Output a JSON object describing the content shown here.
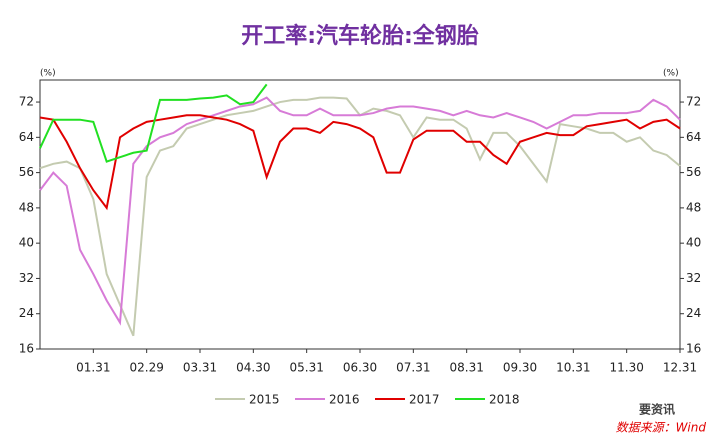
{
  "chart_data": {
    "type": "line",
    "title": "开工率:汽车轮胎:全钢胎",
    "ylabel": "(%)",
    "y2label": "(%)",
    "categories": [
      null,
      null,
      null,
      null,
      "01.31",
      null,
      null,
      null,
      "02.29",
      null,
      null,
      null,
      "03.31",
      null,
      null,
      null,
      "04.30",
      null,
      null,
      null,
      "05.31",
      null,
      null,
      null,
      "06.30",
      null,
      null,
      null,
      "07.31",
      null,
      null,
      null,
      "08.31",
      null,
      null,
      null,
      "09.30",
      null,
      null,
      null,
      "10.31",
      null,
      null,
      null,
      "11.30",
      null,
      null,
      null,
      "12.31"
    ],
    "ylim": [
      16,
      77
    ],
    "yticks": [
      16,
      24,
      32,
      40,
      48,
      56,
      64,
      72
    ],
    "y2lim": [
      16,
      77
    ],
    "y2ticks": [
      16,
      24,
      32,
      40,
      48,
      56,
      64,
      72
    ],
    "series": [
      {
        "name": "2015",
        "color": "#c4cbb0",
        "values": [
          57,
          58,
          58.5,
          57,
          50,
          33,
          26,
          19,
          55,
          61,
          62,
          66,
          67,
          68,
          69,
          69.5,
          70,
          71,
          72,
          72.5,
          72.5,
          73,
          73,
          72.8,
          69,
          70.5,
          70,
          69,
          64,
          68.5,
          68,
          68,
          66,
          59,
          65,
          65,
          62,
          58,
          54,
          67,
          66.5,
          66,
          65,
          65,
          63,
          64,
          61,
          60,
          57.5
        ]
      },
      {
        "name": "2016",
        "color": "#d77bd7",
        "values": [
          52,
          56,
          53,
          38.5,
          33,
          27,
          22,
          58,
          62,
          64,
          65,
          67,
          68,
          69,
          70,
          71,
          71.5,
          73,
          70,
          69,
          69,
          70.5,
          69,
          69,
          69,
          69.5,
          70.5,
          71,
          71,
          70.5,
          70,
          69,
          70,
          69,
          68.5,
          69.5,
          68.5,
          67.5,
          66,
          67.5,
          69,
          69,
          69.5,
          69.5,
          69.5,
          70,
          72.5,
          71,
          68
        ]
      },
      {
        "name": "2017",
        "color": "#e00000",
        "values": [
          68.5,
          68,
          63,
          57,
          52,
          48,
          64,
          66,
          67.5,
          68,
          68.5,
          69,
          69,
          68.5,
          68,
          67,
          65.5,
          55,
          63,
          66,
          66,
          65,
          67.5,
          67,
          66,
          64,
          56,
          56,
          63.5,
          65.5,
          65.5,
          65.5,
          63,
          63,
          60,
          58,
          63,
          64,
          65,
          64.5,
          64.5,
          66.5,
          67,
          67.5,
          68,
          66,
          67.5,
          68,
          66
        ]
      },
      {
        "name": "2018",
        "color": "#22e022",
        "values": [
          61.5,
          68,
          68,
          68,
          67.5,
          58.5,
          59.5,
          60.5,
          61,
          72.5,
          72.5,
          72.5,
          72.8,
          73,
          73.5,
          71.5,
          72,
          76,
          null,
          null,
          null,
          null,
          null,
          null,
          null,
          null,
          null,
          null,
          null,
          null,
          null,
          null,
          null,
          null,
          null,
          null,
          null,
          null,
          null,
          null,
          null,
          null,
          null,
          null,
          null,
          null,
          null,
          null,
          null
        ]
      }
    ],
    "watermark": "要资讯",
    "source": "数据来源：Wind"
  }
}
